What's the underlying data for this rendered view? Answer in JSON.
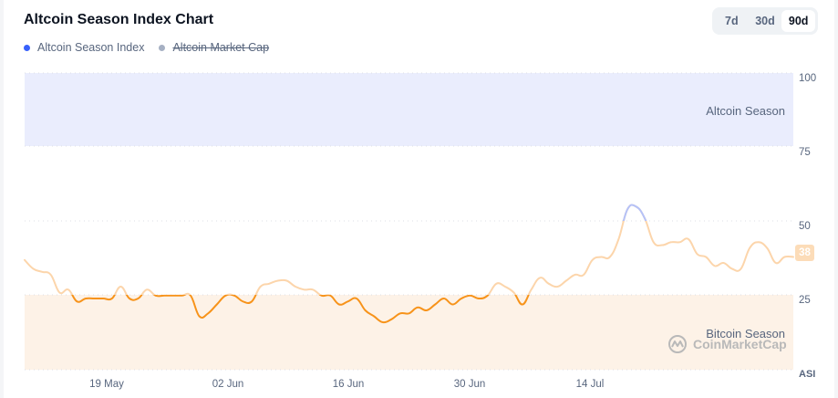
{
  "header": {
    "title": "Altcoin Season Index Chart"
  },
  "legend": [
    {
      "label": "Altcoin Season Index",
      "color": "#3861fb",
      "active": true
    },
    {
      "label": "Altcoin Market Cap",
      "color": "#a6b0c3",
      "active": false
    }
  ],
  "range_selector": {
    "options": [
      "7d",
      "30d",
      "90d"
    ],
    "selected": "90d"
  },
  "y_axis": {
    "ticks": [
      "100",
      "75",
      "50",
      "25"
    ],
    "unit_label": "ASI"
  },
  "x_axis": {
    "ticks": [
      "19 May",
      "02 Jun",
      "16 Jun",
      "30 Jun",
      "14 Jul"
    ]
  },
  "zones": {
    "altcoin_season": {
      "label": "Altcoin Season",
      "from": 75,
      "to": 100,
      "color": "#eaedfd"
    },
    "bitcoin_season": {
      "label": "Bitcoin Season",
      "from": 0,
      "to": 25,
      "color": "#fdf2e7"
    }
  },
  "current_value_badge": "38",
  "watermark": "CoinMarketCap",
  "colors": {
    "line_bitcoin_zone": "#f7931a",
    "line_neutral": "#fcd5ab",
    "line_altcoin_zone": "#b5c2f8"
  },
  "chart_data": {
    "type": "line",
    "title": "Altcoin Season Index Chart",
    "xlabel": "",
    "ylabel": "ASI",
    "ylim": [
      0,
      100
    ],
    "grid": "dotted horizontal at 25/50/75/100",
    "legend_position": "top-left",
    "x_tick_labels": [
      "19 May",
      "02 Jun",
      "16 Jun",
      "30 Jun",
      "14 Jul"
    ],
    "series": [
      {
        "name": "Altcoin Season Index",
        "points": [
          {
            "x": "10 May",
            "y": 37
          },
          {
            "x": "11 May",
            "y": 34
          },
          {
            "x": "12 May",
            "y": 33
          },
          {
            "x": "13 May",
            "y": 32
          },
          {
            "x": "14 May",
            "y": 26
          },
          {
            "x": "15 May",
            "y": 27
          },
          {
            "x": "16 May",
            "y": 23
          },
          {
            "x": "17 May",
            "y": 24
          },
          {
            "x": "18 May",
            "y": 24
          },
          {
            "x": "19 May",
            "y": 24
          },
          {
            "x": "20 May",
            "y": 24
          },
          {
            "x": "21 May",
            "y": 28
          },
          {
            "x": "22 May",
            "y": 24
          },
          {
            "x": "23 May",
            "y": 24
          },
          {
            "x": "24 May",
            "y": 27
          },
          {
            "x": "25 May",
            "y": 25
          },
          {
            "x": "26 May",
            "y": 25
          },
          {
            "x": "27 May",
            "y": 25
          },
          {
            "x": "28 May",
            "y": 25
          },
          {
            "x": "29 May",
            "y": 25
          },
          {
            "x": "30 May",
            "y": 18
          },
          {
            "x": "31 May",
            "y": 19
          },
          {
            "x": "01 Jun",
            "y": 22
          },
          {
            "x": "02 Jun",
            "y": 25
          },
          {
            "x": "03 Jun",
            "y": 25
          },
          {
            "x": "04 Jun",
            "y": 23
          },
          {
            "x": "05 Jun",
            "y": 23
          },
          {
            "x": "06 Jun",
            "y": 28
          },
          {
            "x": "07 Jun",
            "y": 29
          },
          {
            "x": "08 Jun",
            "y": 30
          },
          {
            "x": "09 Jun",
            "y": 30
          },
          {
            "x": "10 Jun",
            "y": 28
          },
          {
            "x": "11 Jun",
            "y": 27
          },
          {
            "x": "12 Jun",
            "y": 27
          },
          {
            "x": "13 Jun",
            "y": 25
          },
          {
            "x": "14 Jun",
            "y": 25
          },
          {
            "x": "15 Jun",
            "y": 22
          },
          {
            "x": "16 Jun",
            "y": 23
          },
          {
            "x": "17 Jun",
            "y": 24
          },
          {
            "x": "18 Jun",
            "y": 20
          },
          {
            "x": "19 Jun",
            "y": 18
          },
          {
            "x": "20 Jun",
            "y": 16
          },
          {
            "x": "21 Jun",
            "y": 17
          },
          {
            "x": "22 Jun",
            "y": 19
          },
          {
            "x": "23 Jun",
            "y": 19
          },
          {
            "x": "24 Jun",
            "y": 21
          },
          {
            "x": "25 Jun",
            "y": 20
          },
          {
            "x": "26 Jun",
            "y": 22
          },
          {
            "x": "27 Jun",
            "y": 24
          },
          {
            "x": "28 Jun",
            "y": 22
          },
          {
            "x": "29 Jun",
            "y": 24
          },
          {
            "x": "30 Jun",
            "y": 25
          },
          {
            "x": "01 Jul",
            "y": 24
          },
          {
            "x": "02 Jul",
            "y": 25
          },
          {
            "x": "03 Jul",
            "y": 29
          },
          {
            "x": "04 Jul",
            "y": 28
          },
          {
            "x": "05 Jul",
            "y": 26
          },
          {
            "x": "06 Jul",
            "y": 22
          },
          {
            "x": "07 Jul",
            "y": 27
          },
          {
            "x": "08 Jul",
            "y": 31
          },
          {
            "x": "09 Jul",
            "y": 29
          },
          {
            "x": "10 Jul",
            "y": 28
          },
          {
            "x": "11 Jul",
            "y": 30
          },
          {
            "x": "12 Jul",
            "y": 32
          },
          {
            "x": "13 Jul",
            "y": 32
          },
          {
            "x": "14 Jul",
            "y": 37
          },
          {
            "x": "15 Jul",
            "y": 38
          },
          {
            "x": "16 Jul",
            "y": 38
          },
          {
            "x": "17 Jul",
            "y": 44
          },
          {
            "x": "18 Jul",
            "y": 54
          },
          {
            "x": "19 Jul",
            "y": 55
          },
          {
            "x": "20 Jul",
            "y": 51
          },
          {
            "x": "21 Jul",
            "y": 43
          },
          {
            "x": "22 Jul",
            "y": 42
          },
          {
            "x": "23 Jul",
            "y": 43
          },
          {
            "x": "24 Jul",
            "y": 43
          },
          {
            "x": "25 Jul",
            "y": 44
          },
          {
            "x": "26 Jul",
            "y": 39
          },
          {
            "x": "27 Jul",
            "y": 38
          },
          {
            "x": "28 Jul",
            "y": 35
          },
          {
            "x": "29 Jul",
            "y": 36
          },
          {
            "x": "30 Jul",
            "y": 34
          },
          {
            "x": "31 Jul",
            "y": 34
          },
          {
            "x": "01 Aug",
            "y": 41
          },
          {
            "x": "02 Aug",
            "y": 43
          },
          {
            "x": "03 Aug",
            "y": 41
          },
          {
            "x": "04 Aug",
            "y": 36
          },
          {
            "x": "05 Aug",
            "y": 38
          },
          {
            "x": "06 Aug",
            "y": 38
          }
        ]
      }
    ]
  }
}
